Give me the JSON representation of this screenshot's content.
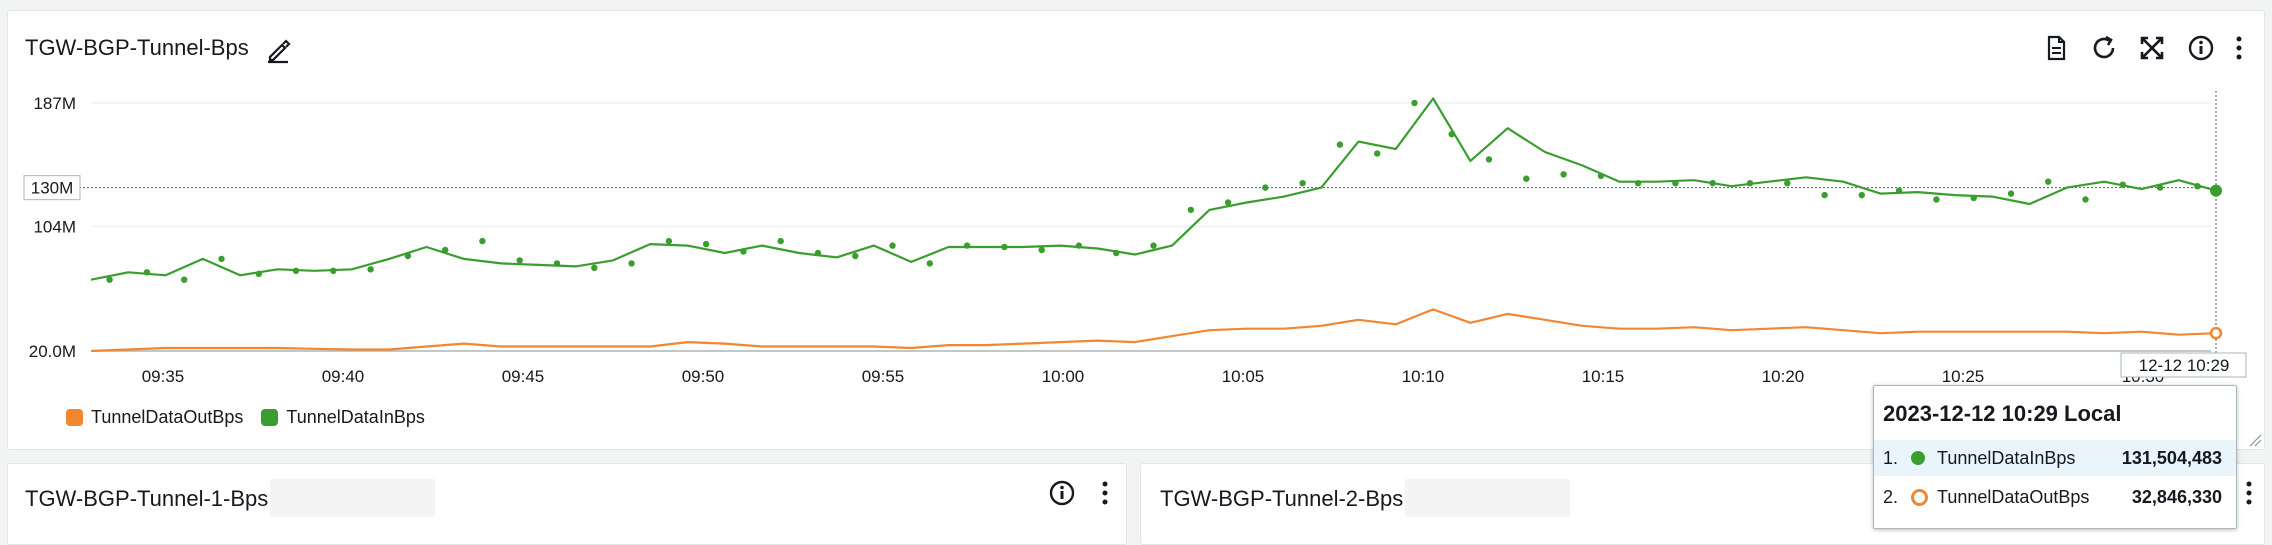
{
  "main_panel": {
    "title": "TGW-BGP-Tunnel-Bps",
    "crosshair_value": "130M",
    "crosshair_time": "12-12 10:29",
    "legend": [
      {
        "label": "TunnelDataOutBps",
        "color": "#f38630"
      },
      {
        "label": "TunnelDataInBps",
        "color": "#3a9e2f"
      }
    ],
    "icons": [
      "document-icon",
      "refresh-icon",
      "expand-icon",
      "info-icon",
      "more-options-icon"
    ]
  },
  "tooltip": {
    "time": "2023-12-12 10:29 Local",
    "rows": [
      {
        "index": "1.",
        "name": "TunnelDataInBps",
        "value": "131,504,483",
        "color": "#3a9e2f"
      },
      {
        "index": "2.",
        "name": "TunnelDataOutBps",
        "value": "32,846,330",
        "color": "#f38630"
      }
    ]
  },
  "panel_1": {
    "title": "TGW-BGP-Tunnel-1-Bps"
  },
  "panel_2": {
    "title": "TGW-BGP-Tunnel-2-Bps"
  },
  "chart_data": {
    "type": "line",
    "x_start": "09:33",
    "x_end": "10:29",
    "x_ticks": [
      "09:35",
      "09:40",
      "09:45",
      "09:50",
      "09:55",
      "10:00",
      "10:05",
      "10:10",
      "10:15",
      "10:20",
      "10:25",
      "10:30"
    ],
    "y_ticks": [
      {
        "label": "20.0M",
        "value": 20
      },
      {
        "label": "104M",
        "value": 104
      },
      {
        "label": "187M",
        "value": 187
      }
    ],
    "ylim": [
      20,
      187
    ],
    "grid": true,
    "legend_position": "bottom-left",
    "series": [
      {
        "name": "TunnelDataInBps",
        "color": "#3a9e2f",
        "line_values": [
          68,
          73,
          71,
          82,
          71,
          75,
          74,
          75,
          82,
          90,
          82,
          79,
          78,
          77,
          81,
          92,
          91,
          86,
          91,
          86,
          83,
          91,
          80,
          90,
          90,
          90,
          91,
          89,
          85,
          91,
          115,
          120,
          124,
          130,
          161,
          156,
          190,
          148,
          170,
          154,
          145,
          134,
          134,
          135,
          131,
          134,
          137,
          134,
          126,
          127,
          125,
          124,
          119,
          130,
          134,
          129,
          135,
          128
        ],
        "dot_values": [
          null,
          68,
          73,
          68,
          82,
          72,
          74,
          74,
          75,
          84,
          88,
          94,
          81,
          79,
          76,
          79,
          94,
          92,
          87,
          94,
          86,
          84,
          91,
          79,
          91,
          90,
          88,
          91,
          86,
          91,
          115,
          120,
          130,
          133,
          159,
          153,
          187,
          166,
          149,
          136,
          139,
          138,
          133,
          133,
          133,
          133,
          133,
          125,
          125,
          128,
          122,
          123,
          126,
          134,
          122,
          132,
          130,
          131
        ]
      },
      {
        "name": "TunnelDataOutBps",
        "color": "#f38630",
        "line_values": [
          20,
          21,
          22,
          22,
          22,
          22,
          21.5,
          21,
          21,
          23,
          25,
          23,
          23,
          23,
          23,
          23,
          26,
          25,
          23,
          23,
          23,
          23,
          22,
          24,
          24,
          25,
          26,
          27,
          26,
          30,
          34,
          35,
          35,
          37,
          41,
          38,
          48,
          39,
          45,
          41,
          37,
          35,
          35,
          36,
          34,
          35,
          36,
          34,
          32,
          33,
          33,
          33,
          33,
          33,
          32,
          33,
          31,
          32
        ]
      }
    ]
  }
}
